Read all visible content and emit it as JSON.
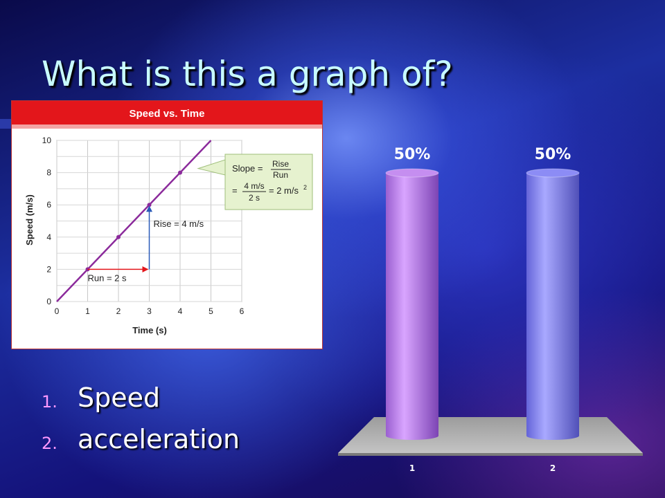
{
  "slide": {
    "title": "What is this a graph of?"
  },
  "answers": [
    {
      "number": "1.",
      "label": "Speed"
    },
    {
      "number": "2.",
      "label": "acceleration"
    }
  ],
  "colors": {
    "title": "#c8fbff",
    "answer_number": "#ff99ff",
    "graph_header": "#e3161b",
    "graph_line": "#8b2a9b",
    "run_arrow": "#e3161b",
    "rise_arrow": "#2a5ab8",
    "callout_fill": "#e6f2cf",
    "bar_1": "#c58ef0",
    "bar_2": "#8c8cf5",
    "poll_floor": "#b3b3b3"
  },
  "chart_data": [
    {
      "type": "line",
      "title": "Speed vs. Time",
      "xlabel": "Time (s)",
      "ylabel": "Speed (m/s)",
      "xlim": [
        0,
        6
      ],
      "ylim": [
        0,
        10
      ],
      "grid": true,
      "x_ticks": [
        "0",
        "1",
        "2",
        "3",
        "4",
        "5",
        "6"
      ],
      "y_ticks": [
        "0",
        "2",
        "4",
        "6",
        "8",
        "10"
      ],
      "series": [
        {
          "x": [
            0,
            5
          ],
          "y": [
            0,
            10
          ]
        }
      ],
      "points": {
        "x": [
          1,
          2,
          3,
          4
        ],
        "y": [
          2,
          4,
          6,
          8
        ]
      },
      "annotations": {
        "run": {
          "label": "Run = 2 s",
          "from_x": 1,
          "to_x": 3,
          "at_y": 2
        },
        "rise": {
          "label": "Rise = 4 m/s",
          "at_x": 3,
          "from_y": 2,
          "to_y": 6
        },
        "slope": {
          "word": "Slope",
          "eq": "=",
          "fraction_num": "Rise",
          "fraction_den": "Run",
          "value_num": "4 m/s",
          "value_den": "2 s",
          "result": "= 2 m/s",
          "result_sup": "2"
        }
      }
    },
    {
      "type": "bar",
      "categories": [
        "1",
        "2"
      ],
      "values": [
        50,
        50
      ],
      "value_labels": [
        "50%",
        "50%"
      ],
      "ylim": [
        0,
        100
      ],
      "style": "3d-cylinder"
    }
  ]
}
